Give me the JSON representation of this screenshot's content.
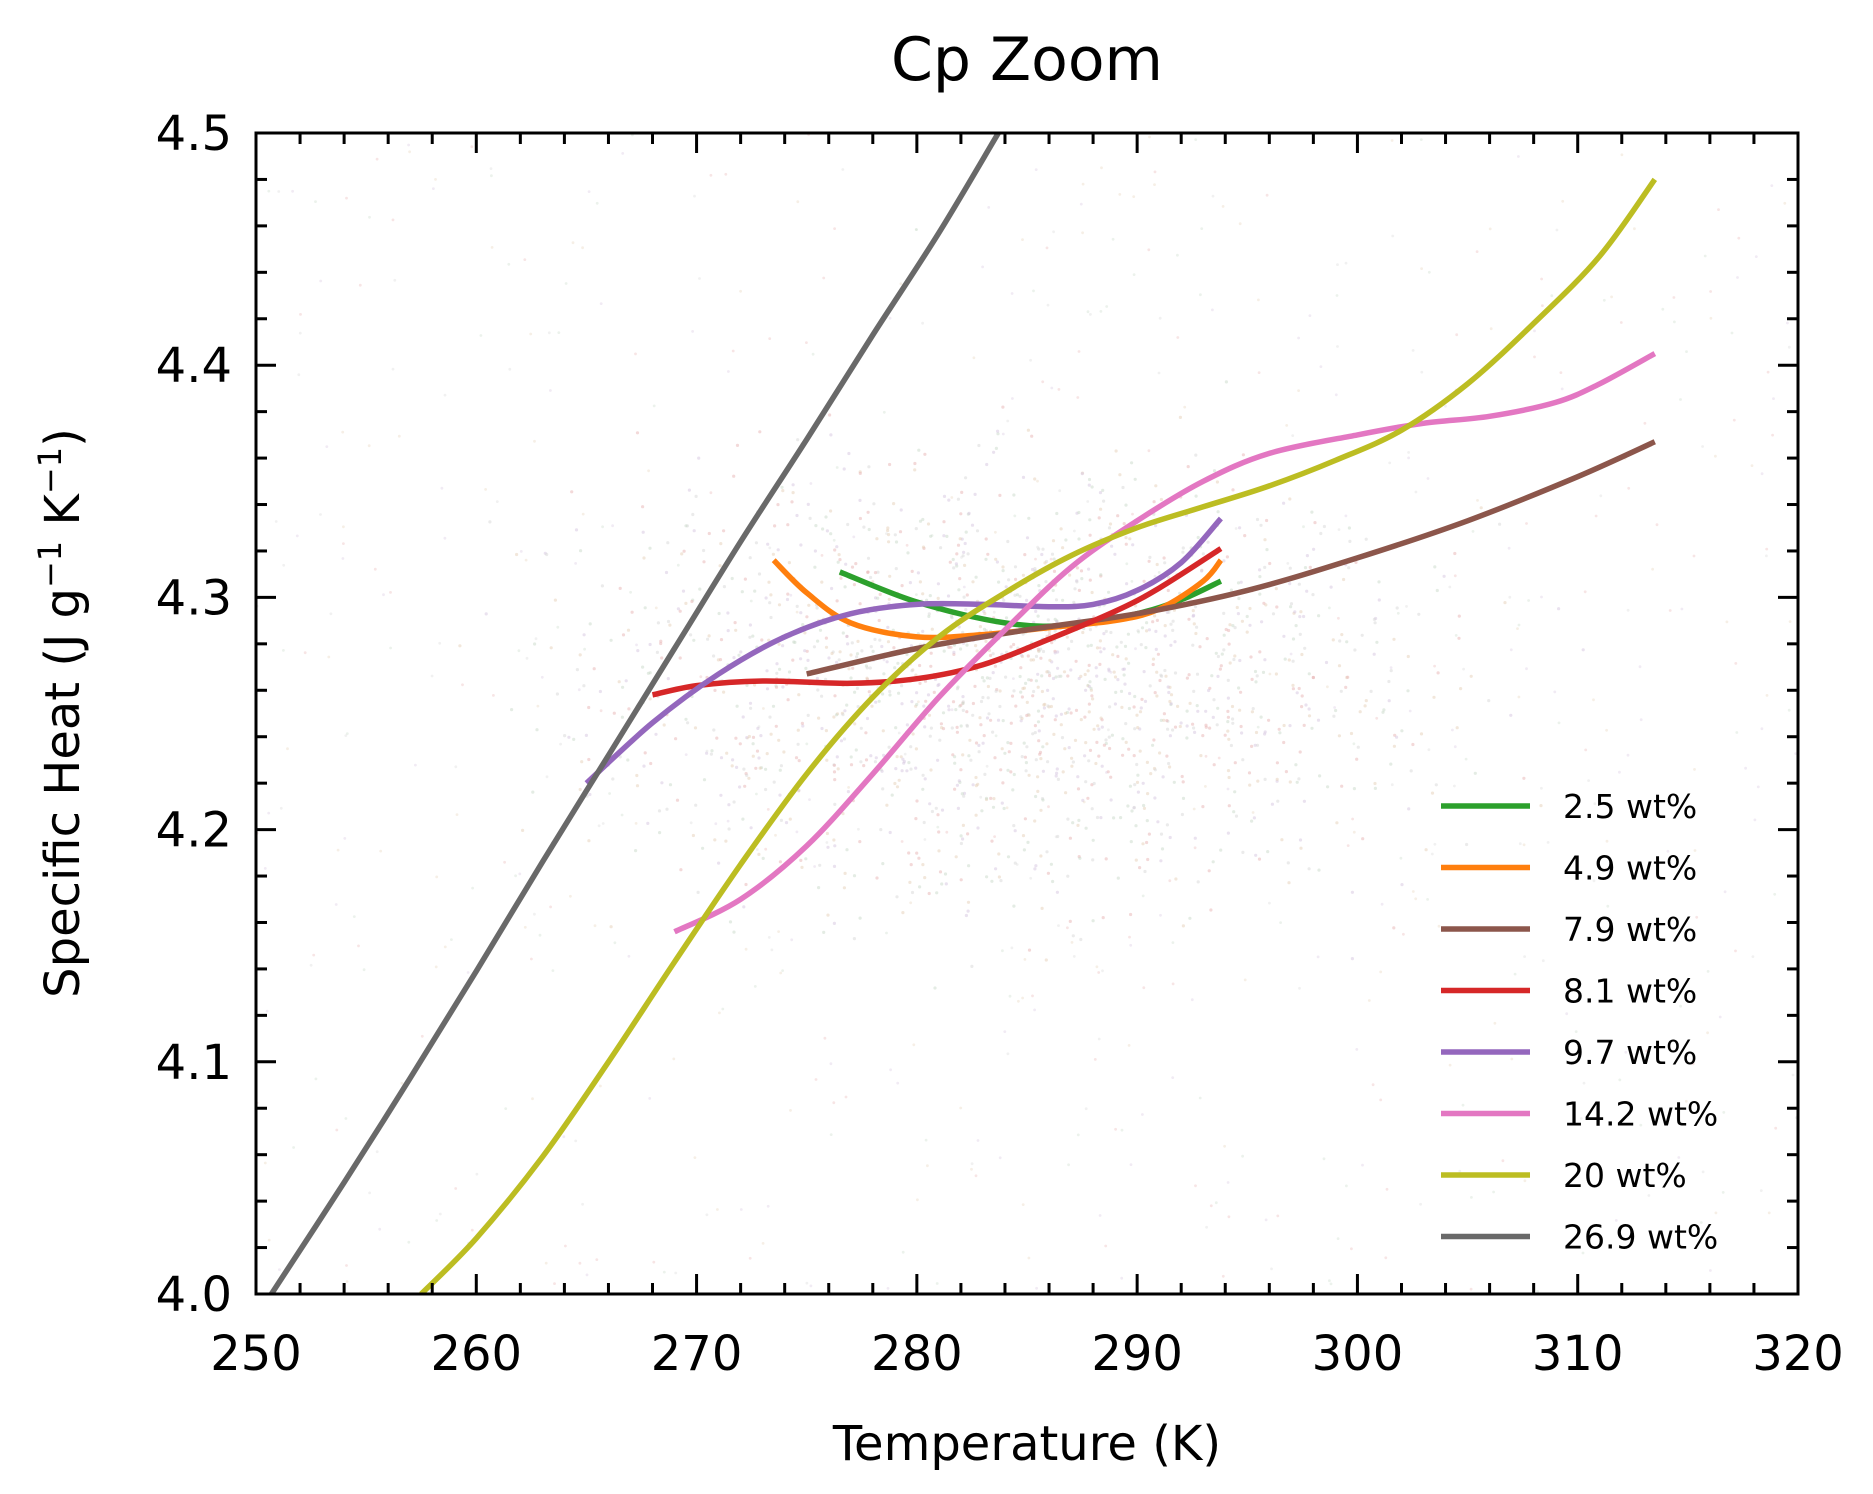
{
  "chart_data": {
    "type": "line",
    "title": "Cp Zoom",
    "xlabel": "Temperature (K)",
    "ylabel": "Specific Heat (J g⁻¹ K⁻¹)",
    "ylabel_parts": [
      "Specific Heat (J g",
      "−1",
      " K",
      "−1",
      ")"
    ],
    "xlim": [
      250,
      320
    ],
    "ylim": [
      4.0,
      4.5
    ],
    "x_ticks": [
      250,
      260,
      270,
      280,
      290,
      300,
      310,
      320
    ],
    "x_tick_labels": [
      "250",
      "260",
      "270",
      "280",
      "290",
      "300",
      "310",
      "320"
    ],
    "y_ticks": [
      4.0,
      4.1,
      4.2,
      4.3,
      4.4,
      4.5
    ],
    "y_tick_labels": [
      "4.0",
      "4.1",
      "4.2",
      "4.3",
      "4.4",
      "4.5"
    ],
    "grid": false,
    "legend_position": "lower-right",
    "series": [
      {
        "name": "2.5 wt%",
        "color": "#2ca02c",
        "points": [
          [
            276.5,
            4.311
          ],
          [
            280,
            4.298
          ],
          [
            284,
            4.289
          ],
          [
            287,
            4.288
          ],
          [
            290,
            4.293
          ],
          [
            292,
            4.299
          ],
          [
            293.8,
            4.307
          ]
        ]
      },
      {
        "name": "4.9 wt%",
        "color": "#ff7f0e",
        "points": [
          [
            273.5,
            4.316
          ],
          [
            275,
            4.302
          ],
          [
            277,
            4.289
          ],
          [
            280,
            4.283
          ],
          [
            283,
            4.284
          ],
          [
            286,
            4.287
          ],
          [
            289,
            4.29
          ],
          [
            291,
            4.295
          ],
          [
            293,
            4.307
          ],
          [
            293.8,
            4.316
          ]
        ]
      },
      {
        "name": "7.9 wt%",
        "color": "#8c564b",
        "points": [
          [
            275,
            4.267
          ],
          [
            280,
            4.278
          ],
          [
            285,
            4.286
          ],
          [
            290,
            4.293
          ],
          [
            295,
            4.303
          ],
          [
            300,
            4.317
          ],
          [
            305,
            4.333
          ],
          [
            310,
            4.352
          ],
          [
            313.5,
            4.367
          ]
        ]
      },
      {
        "name": "8.1 wt%",
        "color": "#d62728",
        "points": [
          [
            268,
            4.258
          ],
          [
            270,
            4.262
          ],
          [
            273,
            4.264
          ],
          [
            277,
            4.263
          ],
          [
            280,
            4.265
          ],
          [
            283,
            4.271
          ],
          [
            286,
            4.282
          ],
          [
            289,
            4.294
          ],
          [
            291,
            4.304
          ],
          [
            293.8,
            4.321
          ]
        ]
      },
      {
        "name": "9.7 wt%",
        "color": "#9467bd",
        "points": [
          [
            265,
            4.22
          ],
          [
            268,
            4.246
          ],
          [
            271,
            4.267
          ],
          [
            274,
            4.283
          ],
          [
            277,
            4.293
          ],
          [
            280,
            4.297
          ],
          [
            283,
            4.297
          ],
          [
            286,
            4.296
          ],
          [
            288,
            4.297
          ],
          [
            290,
            4.303
          ],
          [
            292,
            4.315
          ],
          [
            293.8,
            4.334
          ]
        ]
      },
      {
        "name": "14.2 wt%",
        "color": "#e377c2",
        "points": [
          [
            269,
            4.156
          ],
          [
            272,
            4.17
          ],
          [
            275,
            4.193
          ],
          [
            278,
            4.224
          ],
          [
            281,
            4.257
          ],
          [
            284,
            4.286
          ],
          [
            287,
            4.313
          ],
          [
            290,
            4.333
          ],
          [
            293,
            4.35
          ],
          [
            296,
            4.362
          ],
          [
            300,
            4.37
          ],
          [
            303,
            4.375
          ],
          [
            306,
            4.378
          ],
          [
            309,
            4.384
          ],
          [
            311,
            4.392
          ],
          [
            313.5,
            4.405
          ]
        ]
      },
      {
        "name": "20 wt%",
        "color": "#bcbd22",
        "points": [
          [
            257.5,
            4.0
          ],
          [
            260,
            4.024
          ],
          [
            263,
            4.059
          ],
          [
            266,
            4.1
          ],
          [
            269,
            4.143
          ],
          [
            272,
            4.185
          ],
          [
            275,
            4.224
          ],
          [
            278,
            4.257
          ],
          [
            281,
            4.283
          ],
          [
            284,
            4.302
          ],
          [
            287,
            4.318
          ],
          [
            290,
            4.33
          ],
          [
            293,
            4.339
          ],
          [
            296,
            4.348
          ],
          [
            299,
            4.359
          ],
          [
            302,
            4.372
          ],
          [
            305,
            4.392
          ],
          [
            308,
            4.418
          ],
          [
            311,
            4.447
          ],
          [
            313.5,
            4.48
          ]
        ]
      },
      {
        "name": "26.9 wt%",
        "color": "#696969",
        "points": [
          [
            250.7,
            4.0
          ],
          [
            254,
            4.048
          ],
          [
            257,
            4.093
          ],
          [
            260,
            4.139
          ],
          [
            263,
            4.186
          ],
          [
            266,
            4.232
          ],
          [
            269,
            4.278
          ],
          [
            272,
            4.324
          ],
          [
            275,
            4.368
          ],
          [
            278,
            4.413
          ],
          [
            281,
            4.457
          ],
          [
            283.7,
            4.5
          ]
        ]
      }
    ]
  }
}
